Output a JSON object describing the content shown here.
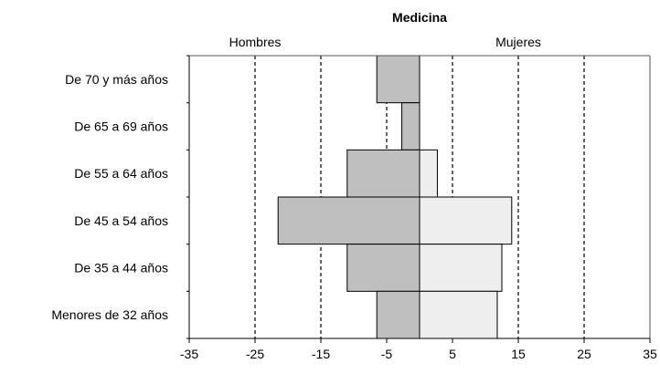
{
  "chart_data": {
    "type": "bar",
    "orientation": "horizontal",
    "layout": "population-pyramid",
    "title": "Medicina",
    "left_label": "Hombres",
    "right_label": "Mujeres",
    "categories": [
      "De 70 y más años",
      "De 65 a 69 años",
      "De 55 a 64 años",
      "De 45 a 54 años",
      "De 35 a 44 años",
      "Menores de 32 años"
    ],
    "series": [
      {
        "name": "Hombres",
        "values": [
          -6.5,
          -2.7,
          -11,
          -21.5,
          -11,
          -6.5
        ],
        "color": "#bfbfbf"
      },
      {
        "name": "Mujeres",
        "values": [
          0,
          0,
          2.7,
          14,
          12.5,
          11.8
        ],
        "color": "#eeeeee"
      }
    ],
    "x_ticks": [
      -35,
      -25,
      -15,
      -5,
      5,
      15,
      25,
      35
    ],
    "x_tick_labels": [
      "-35",
      "-25",
      "-15",
      "-5",
      "5",
      "15",
      "25",
      "35"
    ],
    "reference_lines": [
      -25,
      -15,
      -5,
      5,
      15,
      25
    ],
    "xlim": [
      -35,
      35
    ],
    "grid": false,
    "legend": "none"
  }
}
